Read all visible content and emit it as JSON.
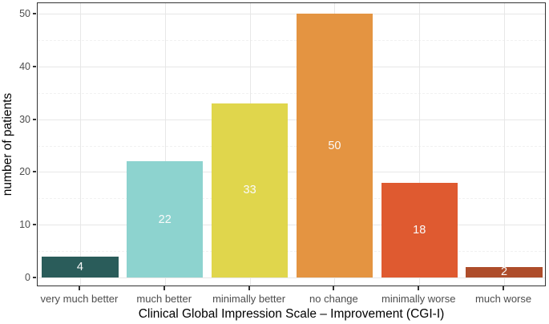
{
  "chart_data": {
    "type": "bar",
    "categories": [
      "very much better",
      "much better",
      "minimally better",
      "no change",
      "minimally worse",
      "much worse"
    ],
    "values": [
      4,
      22,
      33,
      50,
      18,
      2
    ],
    "bar_colors": [
      "#2a5c5a",
      "#8dd3cf",
      "#e0d64c",
      "#e49441",
      "#df5a30",
      "#ae4d2b"
    ],
    "value_labels": [
      "4",
      "22",
      "33",
      "50",
      "18",
      "2"
    ],
    "value_label_color": "#fafafa",
    "title": "",
    "xlabel": "Clinical Global Impression Scale – Improvement (CGI-I)",
    "ylabel": "number of patients",
    "y_ticks": [
      0,
      10,
      20,
      30,
      40,
      50
    ],
    "y_tick_labels": [
      "0",
      "10",
      "20",
      "30",
      "40",
      "50"
    ],
    "y_minor_ticks": [
      5,
      15,
      25,
      35,
      45
    ],
    "ylim": [
      0,
      52
    ],
    "grid": "horizontal major + minor, vertical major at category centers",
    "legend_position": "none",
    "panel_border": true
  },
  "colors": {
    "background": "#ffffff",
    "panel_background": "#ffffff",
    "panel_border": "#333333",
    "major_grid": "#e7e7e7",
    "minor_grid": "#f1f1f1",
    "tick_mark": "#333333",
    "axis_text": "#4d4d4d",
    "axis_title": "#000000"
  }
}
